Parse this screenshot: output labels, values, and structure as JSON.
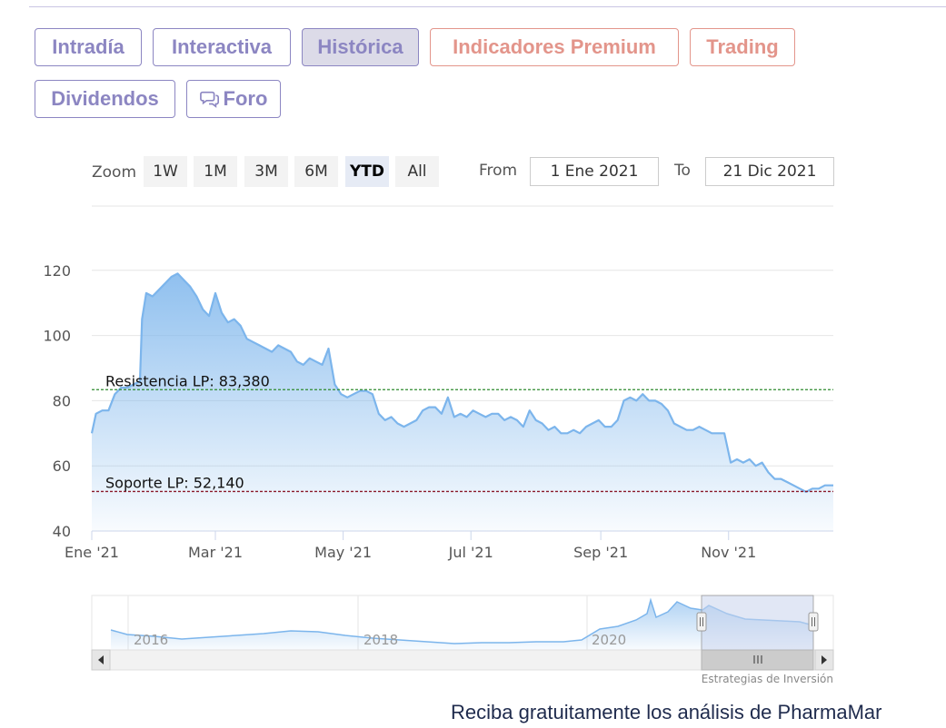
{
  "tabs_row1": [
    {
      "label": "Intradía",
      "style": "purple",
      "active": false
    },
    {
      "label": "Interactiva",
      "style": "purple",
      "active": false
    },
    {
      "label": "Histórica",
      "style": "purple",
      "active": true
    },
    {
      "label": "Indicadores Premium",
      "style": "salmon",
      "active": false
    },
    {
      "label": "Trading",
      "style": "salmon",
      "active": false
    }
  ],
  "tabs_row2": [
    {
      "label": "Dividendos",
      "style": "purple",
      "active": false
    },
    {
      "label": "Foro",
      "style": "purple",
      "active": false,
      "icon": "chat-bubbles-icon"
    }
  ],
  "range_selector": {
    "zoom_label": "Zoom",
    "buttons": [
      "1W",
      "1M",
      "3M",
      "6M",
      "YTD",
      "All"
    ],
    "selected": "YTD",
    "from_label": "From",
    "from_value": "1 Ene 2021",
    "to_label": "To",
    "to_value": "21 Dic 2021"
  },
  "colors": {
    "line": "#7cb5ec",
    "resistance": "#2e8b2e",
    "support": "#8b1a2a",
    "tab_purple": "#8c86c2",
    "tab_salmon": "#e3958b",
    "navigator_mask": "#c9d3ec"
  },
  "chart_data": {
    "type": "area",
    "x_tick_labels": [
      "Ene '21",
      "Mar '21",
      "May '21",
      "Jul '21",
      "Sep '21",
      "Nov '21"
    ],
    "y_tick_labels": [
      "40",
      "60",
      "80",
      "100",
      "120"
    ],
    "ylim": [
      40,
      120
    ],
    "x_range": [
      "2021-01-01",
      "2021-12-21"
    ],
    "grid": true,
    "series": [
      {
        "x": [
          "2021-01-01",
          "2021-01-03",
          "2021-01-06",
          "2021-01-09",
          "2021-01-12",
          "2021-01-15",
          "2021-01-18",
          "2021-01-21",
          "2021-01-24",
          "2021-01-25",
          "2021-01-27",
          "2021-01-30",
          "2021-02-02",
          "2021-02-05",
          "2021-02-08",
          "2021-02-11",
          "2021-02-14",
          "2021-02-17",
          "2021-02-20",
          "2021-02-23",
          "2021-02-26",
          "2021-03-01",
          "2021-03-04",
          "2021-03-07",
          "2021-03-10",
          "2021-03-13",
          "2021-03-16",
          "2021-03-19",
          "2021-03-22",
          "2021-03-25",
          "2021-03-28",
          "2021-03-31",
          "2021-04-03",
          "2021-04-06",
          "2021-04-09",
          "2021-04-12",
          "2021-04-15",
          "2021-04-18",
          "2021-04-21",
          "2021-04-24",
          "2021-04-27",
          "2021-04-30",
          "2021-05-03",
          "2021-05-06",
          "2021-05-09",
          "2021-05-12",
          "2021-05-15",
          "2021-05-18",
          "2021-05-21",
          "2021-05-24",
          "2021-05-27",
          "2021-05-30",
          "2021-06-02",
          "2021-06-05",
          "2021-06-08",
          "2021-06-11",
          "2021-06-14",
          "2021-06-17",
          "2021-06-20",
          "2021-06-23",
          "2021-06-26",
          "2021-06-29",
          "2021-07-02",
          "2021-07-05",
          "2021-07-08",
          "2021-07-11",
          "2021-07-14",
          "2021-07-17",
          "2021-07-20",
          "2021-07-23",
          "2021-07-26",
          "2021-07-29",
          "2021-08-01",
          "2021-08-04",
          "2021-08-07",
          "2021-08-10",
          "2021-08-13",
          "2021-08-16",
          "2021-08-19",
          "2021-08-22",
          "2021-08-25",
          "2021-08-28",
          "2021-08-31",
          "2021-09-03",
          "2021-09-06",
          "2021-09-09",
          "2021-09-12",
          "2021-09-15",
          "2021-09-18",
          "2021-09-21",
          "2021-09-24",
          "2021-09-27",
          "2021-09-30",
          "2021-10-03",
          "2021-10-06",
          "2021-10-09",
          "2021-10-12",
          "2021-10-15",
          "2021-10-18",
          "2021-10-21",
          "2021-10-24",
          "2021-10-27",
          "2021-10-30",
          "2021-11-02",
          "2021-11-05",
          "2021-11-08",
          "2021-11-11",
          "2021-11-14",
          "2021-11-17",
          "2021-11-20",
          "2021-11-23",
          "2021-11-26",
          "2021-11-29",
          "2021-12-02",
          "2021-12-05",
          "2021-12-08",
          "2021-12-11",
          "2021-12-14",
          "2021-12-17",
          "2021-12-21"
        ],
        "y": [
          70,
          76,
          77,
          77,
          82,
          84,
          84,
          85,
          86,
          105,
          113,
          112,
          114,
          116,
          118,
          119,
          117,
          115,
          112,
          108,
          106,
          113,
          107,
          104,
          105,
          103,
          99,
          98,
          97,
          96,
          95,
          97,
          96,
          95,
          92,
          91,
          93,
          92,
          91,
          96,
          85,
          82,
          81,
          82,
          83,
          83,
          82,
          76,
          74,
          75,
          73,
          72,
          73,
          74,
          77,
          78,
          78,
          76,
          81,
          75,
          76,
          75,
          77,
          76,
          75,
          76,
          76,
          74,
          75,
          74,
          72,
          77,
          74,
          73,
          71,
          72,
          70,
          70,
          71,
          70,
          72,
          73,
          74,
          72,
          72,
          74,
          80,
          81,
          80,
          82,
          80,
          80,
          79,
          77,
          73,
          72,
          71,
          71,
          72,
          71,
          70,
          70,
          70,
          61,
          62,
          61,
          62,
          60,
          61,
          58,
          56,
          56,
          55,
          54,
          53,
          52,
          53,
          53,
          54,
          54
        ],
        "approx_daily": true
      }
    ],
    "annotations": [
      {
        "label": "Resistencia LP: 83,380",
        "value": 83.38,
        "type": "horizontal-line"
      },
      {
        "label": "Soporte LP: 52,140",
        "value": 52.14,
        "type": "horizontal-line"
      }
    ],
    "navigator": {
      "year_labels": [
        "2016",
        "2018",
        "2020"
      ],
      "selected_range": [
        "2021-01-01",
        "2021-12-21"
      ]
    },
    "credit": "Estrategias de Inversión"
  },
  "footer": {
    "text": "Reciba gratuitamente los análisis de PharmaMar"
  }
}
